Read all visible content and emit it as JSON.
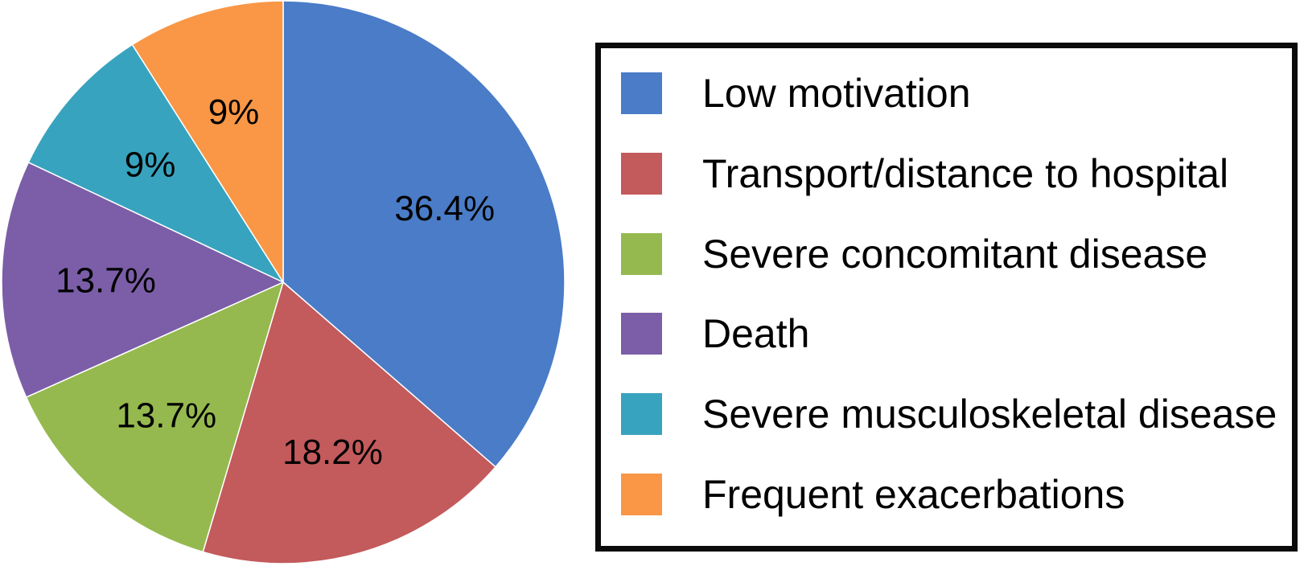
{
  "chart_data": {
    "type": "pie",
    "title": "",
    "categories": [
      "Low motivation",
      "Transport/distance to hospital",
      "Severe concomitant disease",
      "Death",
      "Severe musculoskeletal disease",
      "Frequent exacerbations"
    ],
    "values": [
      36.4,
      18.2,
      13.7,
      13.7,
      9,
      9
    ],
    "slice_labels": [
      "36.4%",
      "18.2%",
      "13.7%",
      "13.7%",
      "9%",
      "9%"
    ],
    "colors": [
      "#4A7CC7",
      "#C35A5C",
      "#95B94F",
      "#7B5EA7",
      "#38A3BE",
      "#F99746"
    ],
    "start_angle_deg": 0,
    "direction": "clockwise",
    "slice_label_color": "#000000",
    "slice_separator_color": "#ffffff",
    "label_radius_fraction": 0.63,
    "legend_position": "right",
    "legend_border_color": "#0b0b0b",
    "legend_text_color": "#000000"
  }
}
